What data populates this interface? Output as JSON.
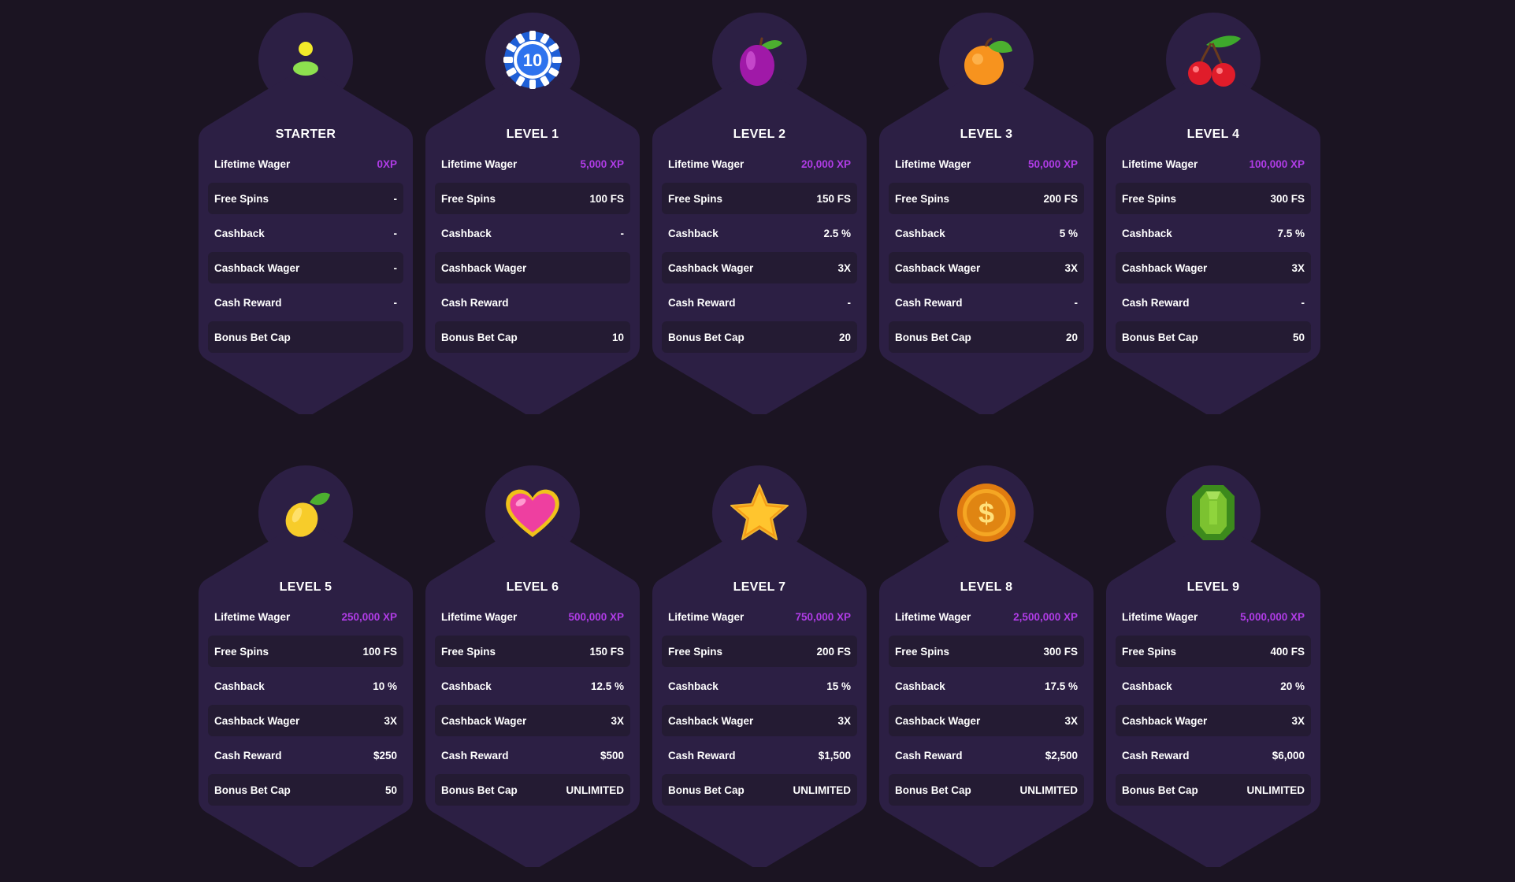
{
  "colors": {
    "background": "#1b1422",
    "card": "#2c1f44",
    "row_alt": "#241b33",
    "xp_accent": "#b03ce6"
  },
  "row_labels": [
    "Lifetime Wager",
    "Free Spins",
    "Cashback",
    "Cashback Wager",
    "Cash Reward",
    "Bonus Bet Cap"
  ],
  "levels": [
    {
      "title": "STARTER",
      "icon": "user-icon",
      "values": [
        "0XP",
        "-",
        "-",
        "-",
        "-",
        ""
      ]
    },
    {
      "title": "LEVEL 1",
      "icon": "casino-chip-icon",
      "chip_text": "10",
      "values": [
        "5,000 XP",
        "100 FS",
        "-",
        "",
        "",
        "10"
      ]
    },
    {
      "title": "LEVEL 2",
      "icon": "plum-icon",
      "values": [
        "20,000 XP",
        "150 FS",
        "2.5 %",
        "3X",
        "-",
        "20"
      ]
    },
    {
      "title": "LEVEL 3",
      "icon": "orange-icon",
      "values": [
        "50,000 XP",
        "200 FS",
        "5 %",
        "3X",
        "-",
        "20"
      ]
    },
    {
      "title": "LEVEL 4",
      "icon": "cherry-icon",
      "values": [
        "100,000 XP",
        "300 FS",
        "7.5 %",
        "3X",
        "-",
        "50"
      ]
    },
    {
      "title": "LEVEL 5",
      "icon": "lemon-icon",
      "values": [
        "250,000 XP",
        "100 FS",
        "10 %",
        "3X",
        "$250",
        "50"
      ]
    },
    {
      "title": "LEVEL 6",
      "icon": "heart-icon",
      "values": [
        "500,000 XP",
        "150 FS",
        "12.5 %",
        "3X",
        "$500",
        "UNLIMITED"
      ]
    },
    {
      "title": "LEVEL 7",
      "icon": "star-icon",
      "values": [
        "750,000 XP",
        "200 FS",
        "15 %",
        "3X",
        "$1,500",
        "UNLIMITED"
      ]
    },
    {
      "title": "LEVEL 8",
      "icon": "dollar-coin-icon",
      "coin_text": "$",
      "values": [
        "2,500,000 XP",
        "300 FS",
        "17.5 %",
        "3X",
        "$2,500",
        "UNLIMITED"
      ]
    },
    {
      "title": "LEVEL 9",
      "icon": "emerald-icon",
      "values": [
        "5,000,000 XP",
        "400 FS",
        "20 %",
        "3X",
        "$6,000",
        "UNLIMITED"
      ]
    }
  ]
}
